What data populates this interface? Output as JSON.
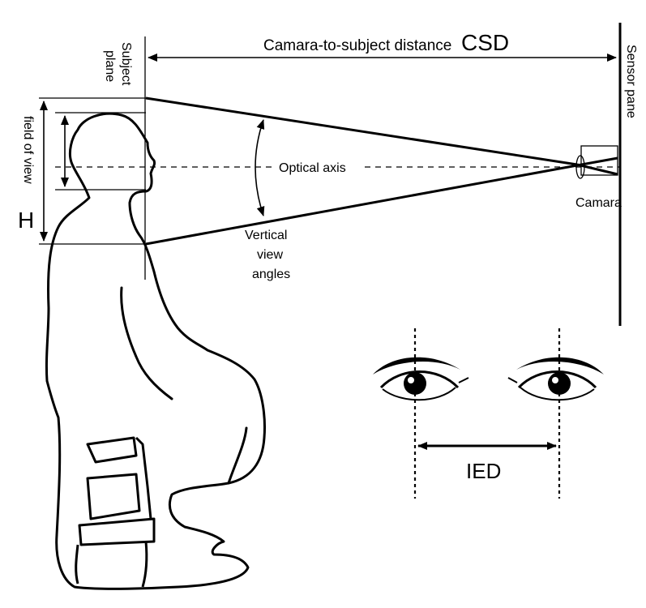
{
  "labels": {
    "csd_text": "Camara-to-subject distance",
    "csd_abbr": "CSD",
    "subject_plane_1": "Subject",
    "subject_plane_2": "plane",
    "sensor_pane": "Sensor pane",
    "field_of_view": "field of view",
    "h": "H",
    "optical_axis": "Optical axis",
    "vertical_1": "Vertical",
    "vertical_2": "view",
    "vertical_3": "angles",
    "camera": "Camara",
    "ied": "IED"
  },
  "colors": {
    "ink": "#000000",
    "background": "#ffffff"
  }
}
